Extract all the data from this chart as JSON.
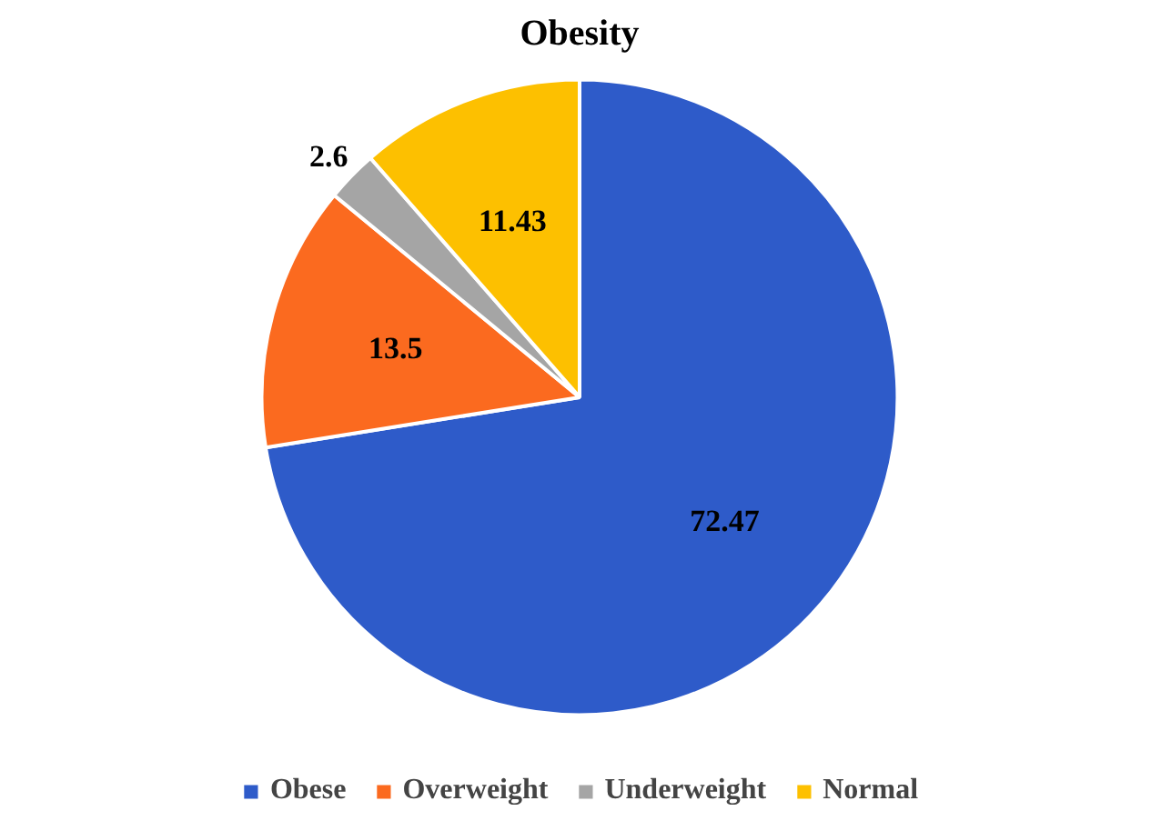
{
  "chart_data": {
    "type": "pie",
    "title": "Obesity",
    "categories": [
      "Obese",
      "Overweight",
      "Underweight",
      "Normal"
    ],
    "values": [
      72.47,
      13.5,
      2.6,
      11.43
    ],
    "colors": [
      "#2e5bc9",
      "#fb6a1f",
      "#a5a5a5",
      "#fdc000"
    ],
    "data_labels": true,
    "legend": "bottom"
  }
}
